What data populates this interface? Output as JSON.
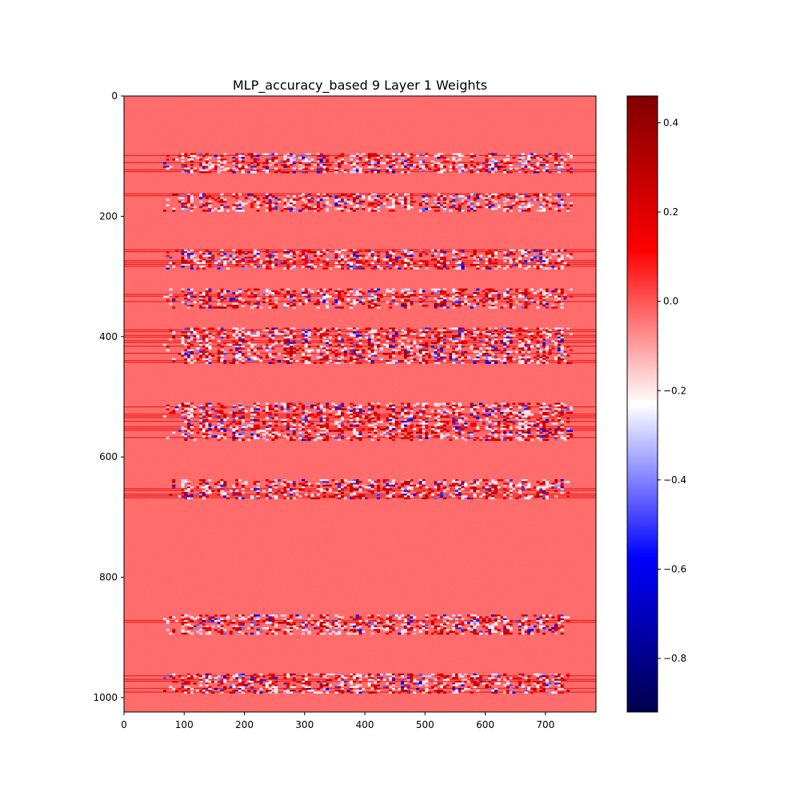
{
  "chart_data": {
    "type": "heatmap",
    "title": "MLP_accuracy_based 9 Layer 1 Weights",
    "xlabel": "",
    "ylabel": "",
    "xlim": [
      0,
      784
    ],
    "ylim": [
      1024,
      0
    ],
    "x_ticks": [
      0,
      100,
      200,
      300,
      400,
      500,
      600,
      700
    ],
    "y_ticks": [
      0,
      200,
      400,
      600,
      800,
      1000
    ],
    "colormap": "seismic",
    "colorbar": {
      "range": [
        -0.92,
        0.46
      ],
      "ticks": [
        "0.4",
        "0.2",
        "0.0",
        "−0.2",
        "−0.4",
        "−0.6",
        "−0.8"
      ],
      "tick_values": [
        0.4,
        0.2,
        0.0,
        -0.2,
        -0.4,
        -0.6,
        -0.8
      ]
    },
    "background_value": 0.0,
    "active_columns": [
      65,
      745
    ],
    "active_row_bands": [
      [
        95,
        128
      ],
      [
        162,
        192
      ],
      [
        255,
        288
      ],
      [
        320,
        352
      ],
      [
        385,
        445
      ],
      [
        510,
        572
      ],
      [
        637,
        668
      ],
      [
        862,
        895
      ],
      [
        960,
        993
      ]
    ],
    "grid": false,
    "legend": "colorbar-right"
  }
}
